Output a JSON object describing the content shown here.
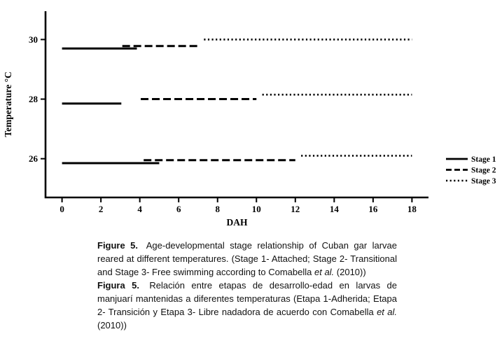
{
  "chart_data": {
    "type": "line",
    "title": "",
    "xlabel": "DAH",
    "ylabel": "Temperature °C",
    "xlim": [
      -0.85,
      18.85
    ],
    "ylim": [
      24.7,
      30.95
    ],
    "xticks": [
      0,
      2,
      4,
      6,
      8,
      10,
      12,
      14,
      16,
      18
    ],
    "yticks": [
      26,
      28,
      30
    ],
    "grid": false,
    "legend_position": "right-outside",
    "line_color": "#000000",
    "series": [
      {
        "name": "Stage 1",
        "style": "solid",
        "segments": [
          {
            "temperature_group": 30,
            "x": [
              0,
              3.85
            ],
            "y": 29.7
          },
          {
            "temperature_group": 28,
            "x": [
              0,
              3.05
            ],
            "y": 27.85
          },
          {
            "temperature_group": 26,
            "x": [
              0,
              5.0
            ],
            "y": 25.85
          }
        ]
      },
      {
        "name": "Stage 2",
        "style": "dashed",
        "segments": [
          {
            "temperature_group": 30,
            "x": [
              3.1,
              7.0
            ],
            "y": 29.78
          },
          {
            "temperature_group": 28,
            "x": [
              4.05,
              10.0
            ],
            "y": 28.0
          },
          {
            "temperature_group": 26,
            "x": [
              4.2,
              12.0
            ],
            "y": 25.95
          }
        ]
      },
      {
        "name": "Stage 3",
        "style": "dotted",
        "segments": [
          {
            "temperature_group": 30,
            "x": [
              7.3,
              18
            ],
            "y": 30.0
          },
          {
            "temperature_group": 28,
            "x": [
              10.3,
              18
            ],
            "y": 28.15
          },
          {
            "temperature_group": 26,
            "x": [
              12.3,
              18
            ],
            "y": 26.1
          }
        ]
      }
    ]
  },
  "caption": {
    "en": {
      "label": "Figure 5.",
      "body1": " Age-developmental stage relationship of Cuban gar larvae reared at different temperatures. (Stage 1- Attached; Stage 2- Transitional and Stage 3- Free swimming according to Comabella ",
      "etal": "et al.",
      "body2": " (2010))"
    },
    "es": {
      "label": "Figura 5.",
      "body1": " Relación entre etapas de desarrollo-edad en larvas de manjuarí mantenidas a diferentes temperaturas (Etapa 1-Adherida; Etapa 2- Transición y Etapa 3- Libre nadadora de acuerdo con Comabella ",
      "etal": "et al.",
      "body2": " (2010))"
    }
  }
}
